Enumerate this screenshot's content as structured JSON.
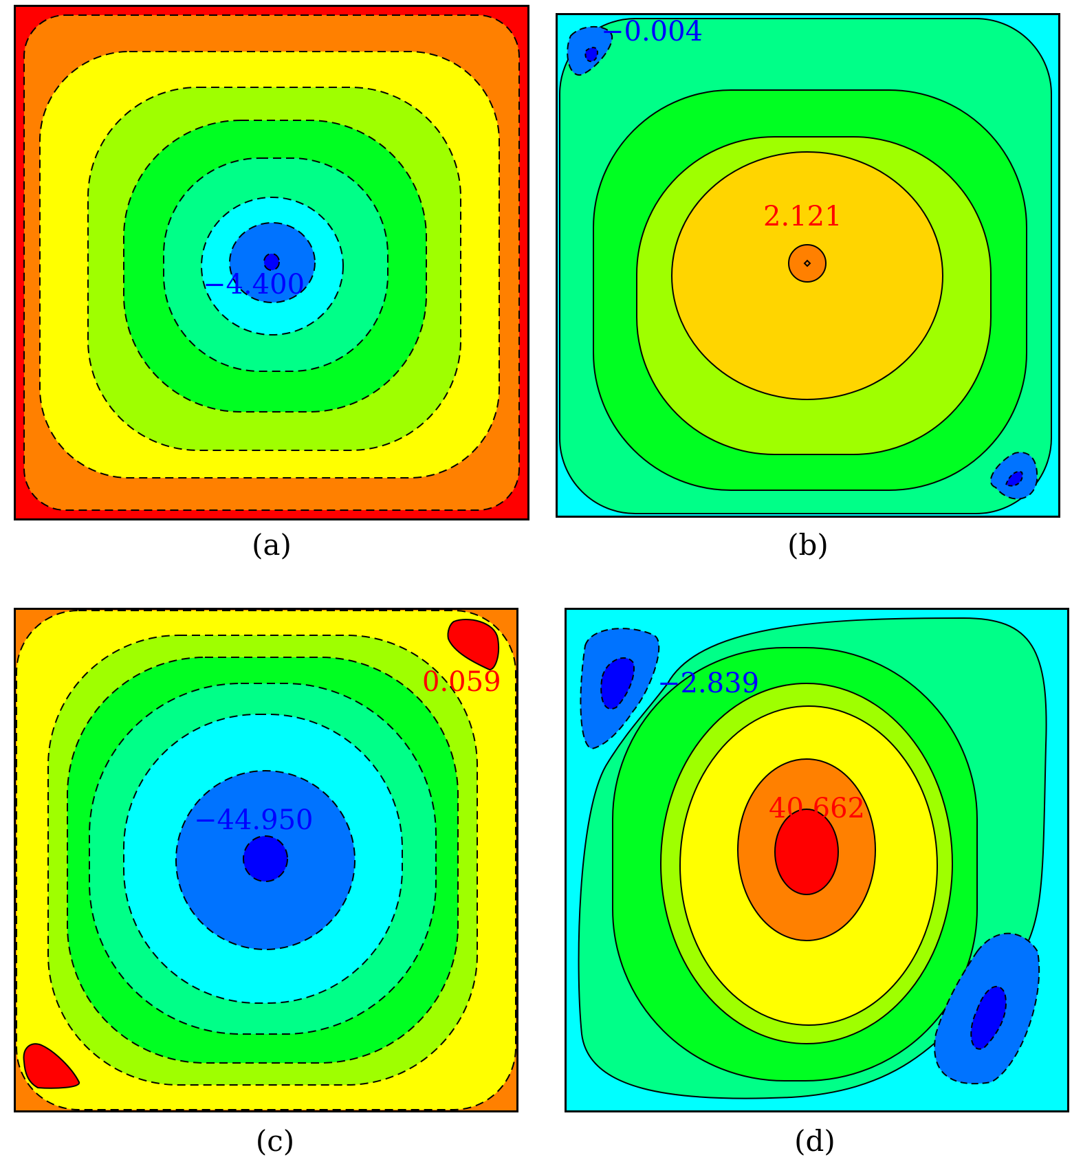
{
  "panels": [
    {
      "id": "a",
      "caption": "(a)",
      "label": "−4.400",
      "label_color": "#0000ff",
      "line_style": "dashed"
    },
    {
      "id": "b",
      "caption": "(b)",
      "label_center": "2.121",
      "label_center_color": "#ff0000",
      "label_corner": "−0.004",
      "label_corner_color": "#0000ff",
      "line_style": "solid"
    },
    {
      "id": "c",
      "caption": "(c)",
      "label_center": "−44.950",
      "label_center_color": "#0000ff",
      "label_corner": "0.059",
      "label_corner_color": "#ff0000",
      "line_style": "dashed"
    },
    {
      "id": "d",
      "caption": "(d)",
      "label_center": "40.662",
      "label_center_color": "#ff0000",
      "label_corner": "−2.839",
      "label_corner_color": "#0000ff",
      "line_style": "solid"
    }
  ],
  "colors": {
    "red": "#ff0000",
    "orange": "#ff8000",
    "gold": "#ffd500",
    "yellow": "#ffff00",
    "lime": "#9fff00",
    "green": "#00ff22",
    "spring": "#00ff88",
    "cyan": "#00ffff",
    "azure": "#0073ff",
    "blue": "#0000ff"
  }
}
